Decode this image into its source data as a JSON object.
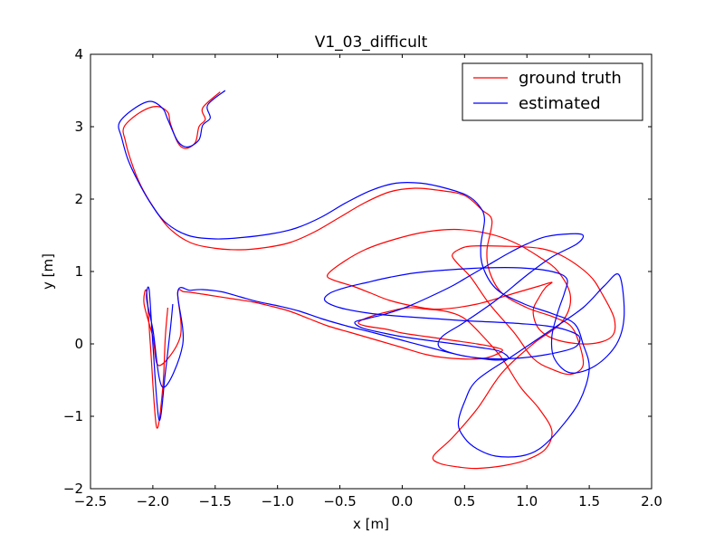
{
  "chart_data": {
    "type": "line",
    "title": "V1_03_difficult",
    "xlabel": "x [m]",
    "ylabel": "y [m]",
    "xlim": [
      -2.5,
      2.0
    ],
    "ylim": [
      -2.0,
      4.0
    ],
    "xticks": [
      -2.5,
      -2.0,
      -1.5,
      -1.0,
      -0.5,
      0.0,
      0.5,
      1.0,
      1.5,
      2.0
    ],
    "xtick_labels": [
      "−2.5",
      "−2.0",
      "−1.5",
      "−1.0",
      "−0.5",
      "0.0",
      "0.5",
      "1.0",
      "1.5",
      "2.0"
    ],
    "yticks": [
      -2,
      -1,
      0,
      1,
      2,
      3,
      4
    ],
    "ytick_labels": [
      "−2",
      "−1",
      "0",
      "1",
      "2",
      "3",
      "4"
    ],
    "grid": false,
    "legend_position": "top-right",
    "series": [
      {
        "name": "ground truth",
        "color": "#ff0000",
        "x": [
          -1.46,
          -1.6,
          -1.58,
          -1.63,
          -1.66,
          -1.74,
          -1.8,
          -1.86,
          -1.88,
          -1.97,
          -2.1,
          -2.23,
          -2.22,
          -2.17,
          -2.1,
          -2.0,
          -1.87,
          -1.7,
          -1.5,
          -1.3,
          -1.1,
          -0.9,
          -0.7,
          -0.5,
          -0.3,
          -0.1,
          0.1,
          0.3,
          0.5,
          0.64,
          0.72,
          0.68,
          0.7,
          0.8,
          1.0,
          1.2,
          1.35,
          1.42,
          1.45,
          1.35,
          1.2,
          1.05,
          0.9,
          0.7,
          0.55,
          0.45,
          0.4,
          0.45,
          0.55,
          0.8,
          1.1,
          1.3,
          1.5,
          1.6,
          1.7,
          1.68,
          1.5,
          1.25,
          1.1,
          1.05,
          1.1,
          1.15,
          1.2,
          1.1,
          0.9,
          0.6,
          0.3,
          0.1,
          -0.1,
          -0.25,
          -0.4,
          -0.55,
          -0.6,
          -0.5,
          -0.3,
          -0.05,
          0.2,
          0.45,
          0.7,
          0.9,
          1.1,
          1.25,
          1.35,
          1.28,
          1.05,
          0.8,
          0.6,
          0.4,
          0.25,
          0.3,
          0.45,
          0.6,
          0.82,
          1.0,
          1.15,
          1.2,
          1.1,
          0.95,
          0.8,
          0.65,
          0.5,
          0.35,
          0.2,
          0.05,
          -0.1,
          -0.25,
          -0.35,
          -0.3,
          -0.12,
          0.0,
          0.2,
          0.4,
          0.6,
          0.75,
          0.8,
          0.65,
          0.4,
          0.2,
          0.0,
          -0.2,
          -0.4,
          -0.6,
          -0.75,
          -0.9,
          -1.05,
          -1.2,
          -1.35,
          -1.5,
          -1.65,
          -1.75,
          -1.8,
          -1.78,
          -1.95,
          -2.0,
          -2.07,
          -2.05,
          -2.02,
          -1.97,
          -1.92,
          -1.9,
          -1.88
        ],
        "y": [
          3.48,
          3.26,
          3.1,
          3.0,
          2.78,
          2.7,
          2.78,
          3.05,
          3.2,
          3.28,
          3.2,
          3.0,
          2.8,
          2.5,
          2.2,
          1.9,
          1.6,
          1.4,
          1.32,
          1.3,
          1.33,
          1.4,
          1.55,
          1.75,
          1.95,
          2.1,
          2.15,
          2.12,
          2.05,
          1.85,
          1.7,
          1.3,
          1.0,
          0.7,
          0.5,
          0.38,
          0.25,
          0.0,
          -0.3,
          -0.42,
          -0.35,
          -0.2,
          0.15,
          0.55,
          0.92,
          1.1,
          1.22,
          1.3,
          1.35,
          1.35,
          1.32,
          1.2,
          0.95,
          0.7,
          0.35,
          0.1,
          0.0,
          0.05,
          0.2,
          0.45,
          0.65,
          0.78,
          0.85,
          0.8,
          0.7,
          0.55,
          0.48,
          0.52,
          0.6,
          0.7,
          0.8,
          0.88,
          0.95,
          1.1,
          1.3,
          1.45,
          1.55,
          1.58,
          1.52,
          1.4,
          1.2,
          1.0,
          0.65,
          0.3,
          0.0,
          -0.4,
          -0.9,
          -1.3,
          -1.55,
          -1.65,
          -1.7,
          -1.72,
          -1.68,
          -1.6,
          -1.45,
          -1.2,
          -0.9,
          -0.6,
          -0.2,
          0.1,
          0.35,
          0.45,
          0.48,
          0.5,
          0.45,
          0.38,
          0.3,
          0.25,
          0.2,
          0.15,
          0.1,
          0.05,
          0.0,
          -0.05,
          -0.1,
          -0.2,
          -0.2,
          -0.15,
          -0.05,
          0.05,
          0.15,
          0.25,
          0.35,
          0.45,
          0.52,
          0.58,
          0.62,
          0.66,
          0.7,
          0.72,
          0.7,
          0.1,
          -0.3,
          0.1,
          0.55,
          0.72,
          0.0,
          -1.15,
          -0.6,
          0.1,
          0.5
        ]
      },
      {
        "name": "estimated",
        "color": "#0000ff",
        "x": [
          -1.42,
          -1.56,
          -1.54,
          -1.6,
          -1.63,
          -1.72,
          -1.8,
          -1.88,
          -1.92,
          -2.02,
          -2.15,
          -2.27,
          -2.25,
          -2.2,
          -2.12,
          -2.02,
          -1.9,
          -1.72,
          -1.5,
          -1.28,
          -1.05,
          -0.85,
          -0.65,
          -0.45,
          -0.25,
          -0.05,
          0.15,
          0.35,
          0.52,
          0.62,
          0.66,
          0.63,
          0.65,
          0.76,
          0.98,
          1.2,
          1.38,
          1.45,
          1.5,
          1.42,
          1.25,
          1.1,
          0.95,
          0.75,
          0.6,
          0.5,
          0.45,
          0.5,
          0.6,
          0.9,
          1.2,
          1.45,
          1.62,
          1.74,
          1.78,
          1.72,
          1.55,
          1.35,
          1.22,
          1.2,
          1.25,
          1.3,
          1.32,
          1.2,
          0.95,
          0.65,
          0.35,
          0.1,
          -0.1,
          -0.28,
          -0.45,
          -0.58,
          -0.62,
          -0.5,
          -0.25,
          0.0,
          0.25,
          0.5,
          0.75,
          0.95,
          1.15,
          1.3,
          1.42,
          1.38,
          1.15,
          0.9,
          0.65,
          0.45,
          0.3,
          0.32,
          0.5,
          0.75,
          1.0,
          1.2,
          1.4,
          1.45,
          1.35,
          1.15,
          1.0,
          0.85,
          0.7,
          0.55,
          0.4,
          0.22,
          0.05,
          -0.12,
          -0.28,
          -0.38,
          -0.32,
          -0.15,
          0.0,
          0.2,
          0.42,
          0.62,
          0.78,
          0.85,
          0.72,
          0.45,
          0.22,
          0.0,
          -0.22,
          -0.45,
          -0.65,
          -0.82,
          -0.98,
          -1.15,
          -1.3,
          -1.45,
          -1.6,
          -1.7,
          -1.8,
          -1.76,
          -1.92,
          -2.0,
          -2.05,
          -2.03,
          -2.0,
          -1.95,
          -1.9,
          -1.86,
          -1.84
        ],
        "y": [
          3.5,
          3.3,
          3.12,
          3.02,
          2.82,
          2.72,
          2.8,
          3.1,
          3.25,
          3.35,
          3.25,
          3.05,
          2.85,
          2.55,
          2.25,
          1.95,
          1.68,
          1.5,
          1.45,
          1.47,
          1.52,
          1.6,
          1.75,
          1.95,
          2.12,
          2.22,
          2.22,
          2.15,
          2.05,
          1.9,
          1.72,
          1.35,
          1.05,
          0.75,
          0.55,
          0.42,
          0.28,
          0.0,
          -0.35,
          -0.8,
          -1.2,
          -1.45,
          -1.55,
          -1.55,
          -1.45,
          -1.3,
          -1.1,
          -0.8,
          -0.5,
          -0.15,
          0.2,
          0.5,
          0.8,
          0.95,
          0.4,
          0.0,
          -0.3,
          -0.4,
          -0.2,
          0.1,
          0.45,
          0.7,
          0.9,
          1.0,
          1.05,
          1.05,
          1.02,
          0.98,
          0.92,
          0.85,
          0.78,
          0.7,
          0.6,
          0.5,
          0.42,
          0.38,
          0.35,
          0.32,
          0.3,
          0.28,
          0.25,
          0.2,
          0.1,
          -0.05,
          -0.15,
          -0.2,
          -0.2,
          -0.15,
          -0.05,
          0.1,
          0.3,
          0.6,
          0.95,
          1.2,
          1.38,
          1.5,
          1.52,
          1.48,
          1.38,
          1.25,
          1.1,
          0.95,
          0.8,
          0.65,
          0.52,
          0.42,
          0.35,
          0.3,
          0.22,
          0.15,
          0.1,
          0.05,
          0.0,
          -0.05,
          -0.1,
          -0.2,
          -0.22,
          -0.15,
          -0.05,
          0.05,
          0.15,
          0.25,
          0.35,
          0.45,
          0.52,
          0.58,
          0.65,
          0.72,
          0.75,
          0.74,
          0.72,
          0.0,
          -0.6,
          0.2,
          0.62,
          0.75,
          0.0,
          -1.05,
          -0.4,
          0.2,
          0.55
        ]
      }
    ]
  }
}
